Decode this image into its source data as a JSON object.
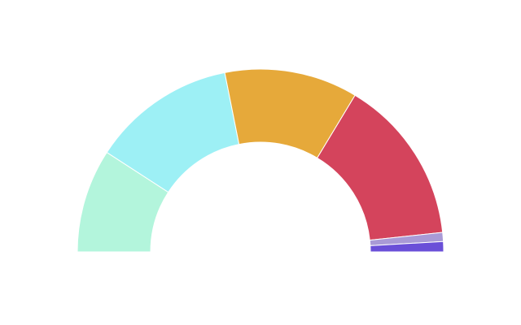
{
  "chart_data": {
    "type": "semi-donut",
    "values": [
      18.3,
      25.4,
      23.5,
      29.3,
      1.6,
      1.8
    ],
    "colors": [
      "#b3f5dc",
      "#9df0f5",
      "#e6a93a",
      "#d4445c",
      "#a99ad6",
      "#6a4fd8"
    ]
  }
}
